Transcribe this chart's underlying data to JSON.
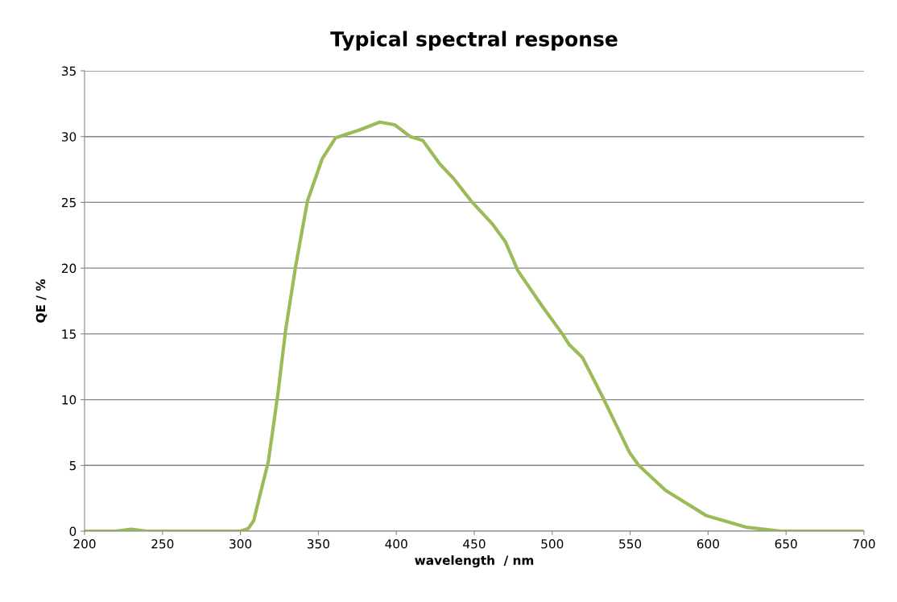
{
  "chart_data": {
    "type": "line",
    "title": "Typical spectral response",
    "xlabel": "wavelength  / nm",
    "ylabel": "QE / %",
    "series": [
      {
        "color": "#9bbb59",
        "x": [
          200,
          220,
          230,
          240,
          250,
          270,
          290,
          300,
          305,
          308.5,
          312,
          317.9,
          324,
          329,
          335.5,
          343,
          352.4,
          361,
          376.4,
          389.3,
          398.9,
          409,
          417,
          428,
          436.8,
          448,
          462,
          470,
          478,
          493.6,
          506.5,
          510.8,
          519.4,
          533.2,
          549.5,
          555.5,
          572.7,
          598.6,
          624.4,
          647,
          670,
          700
        ],
        "values": [
          0,
          0,
          0.15,
          0,
          0,
          0,
          0,
          0,
          0.2,
          0.8,
          2.5,
          5.3,
          10.4,
          15.3,
          20.2,
          25.1,
          28.3,
          29.9,
          30.5,
          31.1,
          30.9,
          30.0,
          29.7,
          27.9,
          26.8,
          25.1,
          23.3,
          22,
          19.8,
          17.1,
          15.0,
          14.2,
          13.2,
          10.0,
          6.0,
          5.0,
          3.1,
          1.2,
          0.3,
          0,
          0,
          0
        ]
      }
    ],
    "xlim": [
      200,
      700
    ],
    "xticks": [
      200,
      250,
      300,
      350,
      400,
      450,
      500,
      550,
      600,
      650,
      700
    ],
    "ylim": [
      0,
      35
    ],
    "yticks": [
      0,
      5,
      10,
      15,
      20,
      25,
      30,
      35
    ],
    "grid": "y",
    "legend": false
  }
}
